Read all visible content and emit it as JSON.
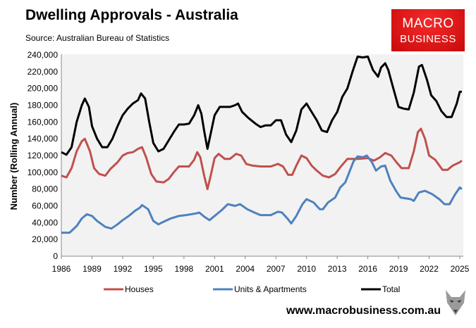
{
  "header": {
    "title": "Dwelling Approvals - Australia",
    "source": "Source: Australian Bureau of Statistics"
  },
  "logo": {
    "line1": "MACRO",
    "line2": "BUSINESS",
    "color": "#e01b1b"
  },
  "footer": {
    "url": "www.macrobusiness.com.au"
  },
  "chart_data": {
    "type": "line",
    "title": "Dwelling Approvals - Australia",
    "ylabel": "Number (Rolling Annual)",
    "xlabel": "",
    "xlim": [
      1986,
      2025.3
    ],
    "ylim": [
      0,
      240000
    ],
    "xticks": [
      1986,
      1989,
      1992,
      1995,
      1998,
      2001,
      2004,
      2007,
      2010,
      2013,
      2016,
      2019,
      2022,
      2025
    ],
    "yticks": [
      0,
      20000,
      40000,
      60000,
      80000,
      100000,
      120000,
      140000,
      160000,
      180000,
      200000,
      220000,
      240000
    ],
    "ytick_labels": [
      "0",
      "20,000",
      "40,000",
      "60,000",
      "80,000",
      "100,000",
      "120,000",
      "140,000",
      "160,000",
      "180,000",
      "200,000",
      "220,000",
      "240,000"
    ],
    "grid": false,
    "legend": "bottom",
    "series": [
      {
        "name": "Houses",
        "color": "#c0504d",
        "points": [
          [
            1986,
            96000
          ],
          [
            1986.5,
            94000
          ],
          [
            1987,
            105000
          ],
          [
            1987.5,
            125000
          ],
          [
            1988,
            137000
          ],
          [
            1988.3,
            140000
          ],
          [
            1988.8,
            125000
          ],
          [
            1989.2,
            105000
          ],
          [
            1989.7,
            98000
          ],
          [
            1990.3,
            96000
          ],
          [
            1990.8,
            104000
          ],
          [
            1991.5,
            112000
          ],
          [
            1992,
            120000
          ],
          [
            1992.5,
            123000
          ],
          [
            1993,
            124000
          ],
          [
            1993.5,
            128000
          ],
          [
            1993.9,
            130000
          ],
          [
            1994.3,
            118000
          ],
          [
            1994.8,
            98000
          ],
          [
            1995.3,
            89000
          ],
          [
            1996,
            88000
          ],
          [
            1996.5,
            92000
          ],
          [
            1997,
            100000
          ],
          [
            1997.5,
            107000
          ],
          [
            1998,
            107000
          ],
          [
            1998.5,
            107000
          ],
          [
            1999,
            115000
          ],
          [
            1999.3,
            124000
          ],
          [
            1999.6,
            118000
          ],
          [
            2000,
            95000
          ],
          [
            2000.3,
            80000
          ],
          [
            2000.6,
            95000
          ],
          [
            2001,
            117000
          ],
          [
            2001.4,
            122000
          ],
          [
            2002,
            116000
          ],
          [
            2002.5,
            116000
          ],
          [
            2003.1,
            122000
          ],
          [
            2003.6,
            120000
          ],
          [
            2004.1,
            110000
          ],
          [
            2004.7,
            108000
          ],
          [
            2005.5,
            107000
          ],
          [
            2006.5,
            107000
          ],
          [
            2007.2,
            110000
          ],
          [
            2007.7,
            107000
          ],
          [
            2008.2,
            97000
          ],
          [
            2008.6,
            97000
          ],
          [
            2009,
            108000
          ],
          [
            2009.5,
            120000
          ],
          [
            2010,
            117000
          ],
          [
            2010.5,
            108000
          ],
          [
            2011,
            102000
          ],
          [
            2011.6,
            96000
          ],
          [
            2012.2,
            94000
          ],
          [
            2012.8,
            98000
          ],
          [
            2013.3,
            106000
          ],
          [
            2014,
            116000
          ],
          [
            2015,
            116000
          ],
          [
            2016,
            117000
          ],
          [
            2016.6,
            114000
          ],
          [
            2017.2,
            118000
          ],
          [
            2017.7,
            123000
          ],
          [
            2018.3,
            120000
          ],
          [
            2018.8,
            112000
          ],
          [
            2019.3,
            105000
          ],
          [
            2020,
            105000
          ],
          [
            2020.5,
            125000
          ],
          [
            2020.9,
            148000
          ],
          [
            2021.2,
            152000
          ],
          [
            2021.6,
            140000
          ],
          [
            2022,
            120000
          ],
          [
            2022.6,
            115000
          ],
          [
            2023.3,
            103000
          ],
          [
            2023.8,
            103000
          ],
          [
            2024.3,
            108000
          ],
          [
            2025,
            112000
          ],
          [
            2025.2,
            114000
          ]
        ]
      },
      {
        "name": "Units & Apartments",
        "color": "#4f81bd",
        "points": [
          [
            1986,
            28000
          ],
          [
            1986.8,
            28000
          ],
          [
            1987.5,
            36000
          ],
          [
            1988,
            45000
          ],
          [
            1988.5,
            50000
          ],
          [
            1989,
            48000
          ],
          [
            1989.5,
            42000
          ],
          [
            1990.3,
            35000
          ],
          [
            1990.9,
            33000
          ],
          [
            1991.5,
            38000
          ],
          [
            1992,
            43000
          ],
          [
            1992.6,
            48000
          ],
          [
            1993.2,
            54000
          ],
          [
            1993.7,
            58000
          ],
          [
            1993.9,
            61000
          ],
          [
            1994.5,
            56000
          ],
          [
            1995,
            42000
          ],
          [
            1995.5,
            38000
          ],
          [
            1996,
            41000
          ],
          [
            1996.7,
            45000
          ],
          [
            1997.5,
            48000
          ],
          [
            1998.2,
            49000
          ],
          [
            1999.2,
            51000
          ],
          [
            1999.5,
            52000
          ],
          [
            2000,
            47000
          ],
          [
            2000.5,
            43000
          ],
          [
            2001,
            48000
          ],
          [
            2001.7,
            55000
          ],
          [
            2002.3,
            62000
          ],
          [
            2003,
            60000
          ],
          [
            2003.5,
            62000
          ],
          [
            2004.2,
            56000
          ],
          [
            2004.9,
            52000
          ],
          [
            2005.5,
            49000
          ],
          [
            2006.5,
            49000
          ],
          [
            2007.2,
            53000
          ],
          [
            2007.6,
            52000
          ],
          [
            2008.2,
            44000
          ],
          [
            2008.5,
            39000
          ],
          [
            2009,
            48000
          ],
          [
            2009.6,
            62000
          ],
          [
            2010,
            68000
          ],
          [
            2010.7,
            64000
          ],
          [
            2011.3,
            56000
          ],
          [
            2011.6,
            56000
          ],
          [
            2012.1,
            64000
          ],
          [
            2012.8,
            70000
          ],
          [
            2013.3,
            82000
          ],
          [
            2013.8,
            88000
          ],
          [
            2014.6,
            113000
          ],
          [
            2015,
            119000
          ],
          [
            2015.5,
            118000
          ],
          [
            2015.9,
            120000
          ],
          [
            2016.4,
            112000
          ],
          [
            2016.8,
            102000
          ],
          [
            2017.3,
            107000
          ],
          [
            2017.7,
            108000
          ],
          [
            2018.2,
            90000
          ],
          [
            2018.8,
            77000
          ],
          [
            2019.2,
            70000
          ],
          [
            2020.2,
            68000
          ],
          [
            2020.5,
            66000
          ],
          [
            2021,
            76000
          ],
          [
            2021.6,
            78000
          ],
          [
            2022.3,
            74000
          ],
          [
            2023,
            68000
          ],
          [
            2023.5,
            62000
          ],
          [
            2024,
            62000
          ],
          [
            2024.5,
            73000
          ],
          [
            2025,
            82000
          ],
          [
            2025.2,
            80000
          ]
        ]
      },
      {
        "name": "Total",
        "color": "#000000",
        "points": [
          [
            1986,
            124000
          ],
          [
            1986.5,
            121000
          ],
          [
            1987,
            130000
          ],
          [
            1987.5,
            160000
          ],
          [
            1988,
            180000
          ],
          [
            1988.3,
            188000
          ],
          [
            1988.7,
            178000
          ],
          [
            1989,
            155000
          ],
          [
            1989.5,
            140000
          ],
          [
            1990,
            130000
          ],
          [
            1990.5,
            130000
          ],
          [
            1991,
            140000
          ],
          [
            1991.5,
            155000
          ],
          [
            1992,
            168000
          ],
          [
            1992.5,
            176000
          ],
          [
            1993,
            182000
          ],
          [
            1993.5,
            186000
          ],
          [
            1993.8,
            194000
          ],
          [
            1994.2,
            188000
          ],
          [
            1994.6,
            160000
          ],
          [
            1995,
            135000
          ],
          [
            1995.5,
            125000
          ],
          [
            1996,
            128000
          ],
          [
            1996.5,
            138000
          ],
          [
            1997,
            148000
          ],
          [
            1997.5,
            157000
          ],
          [
            1998,
            157000
          ],
          [
            1998.5,
            158000
          ],
          [
            1999,
            168000
          ],
          [
            1999.4,
            180000
          ],
          [
            1999.7,
            170000
          ],
          [
            2000,
            148000
          ],
          [
            2000.3,
            128000
          ],
          [
            2000.6,
            145000
          ],
          [
            2001,
            168000
          ],
          [
            2001.5,
            178000
          ],
          [
            2002,
            178000
          ],
          [
            2002.5,
            178000
          ],
          [
            2003,
            180000
          ],
          [
            2003.3,
            182000
          ],
          [
            2003.7,
            172000
          ],
          [
            2004.3,
            165000
          ],
          [
            2005,
            158000
          ],
          [
            2005.5,
            154000
          ],
          [
            2006,
            156000
          ],
          [
            2006.5,
            156000
          ],
          [
            2007,
            162000
          ],
          [
            2007.5,
            162000
          ],
          [
            2008,
            145000
          ],
          [
            2008.5,
            136000
          ],
          [
            2009,
            150000
          ],
          [
            2009.5,
            175000
          ],
          [
            2010,
            182000
          ],
          [
            2010.5,
            172000
          ],
          [
            2011,
            162000
          ],
          [
            2011.5,
            150000
          ],
          [
            2012,
            148000
          ],
          [
            2012.5,
            162000
          ],
          [
            2013,
            172000
          ],
          [
            2013.5,
            190000
          ],
          [
            2014,
            200000
          ],
          [
            2014.5,
            220000
          ],
          [
            2015,
            238000
          ],
          [
            2015.5,
            237000
          ],
          [
            2016,
            238000
          ],
          [
            2016.5,
            222000
          ],
          [
            2017,
            214000
          ],
          [
            2017.3,
            225000
          ],
          [
            2017.7,
            230000
          ],
          [
            2018,
            222000
          ],
          [
            2018.5,
            200000
          ],
          [
            2019,
            178000
          ],
          [
            2019.5,
            176000
          ],
          [
            2020,
            175000
          ],
          [
            2020.5,
            195000
          ],
          [
            2021,
            226000
          ],
          [
            2021.3,
            228000
          ],
          [
            2021.8,
            210000
          ],
          [
            2022.2,
            192000
          ],
          [
            2022.7,
            185000
          ],
          [
            2023.2,
            173000
          ],
          [
            2023.7,
            166000
          ],
          [
            2024.2,
            166000
          ],
          [
            2024.7,
            182000
          ],
          [
            2025,
            196000
          ],
          [
            2025.2,
            196000
          ]
        ]
      }
    ]
  }
}
